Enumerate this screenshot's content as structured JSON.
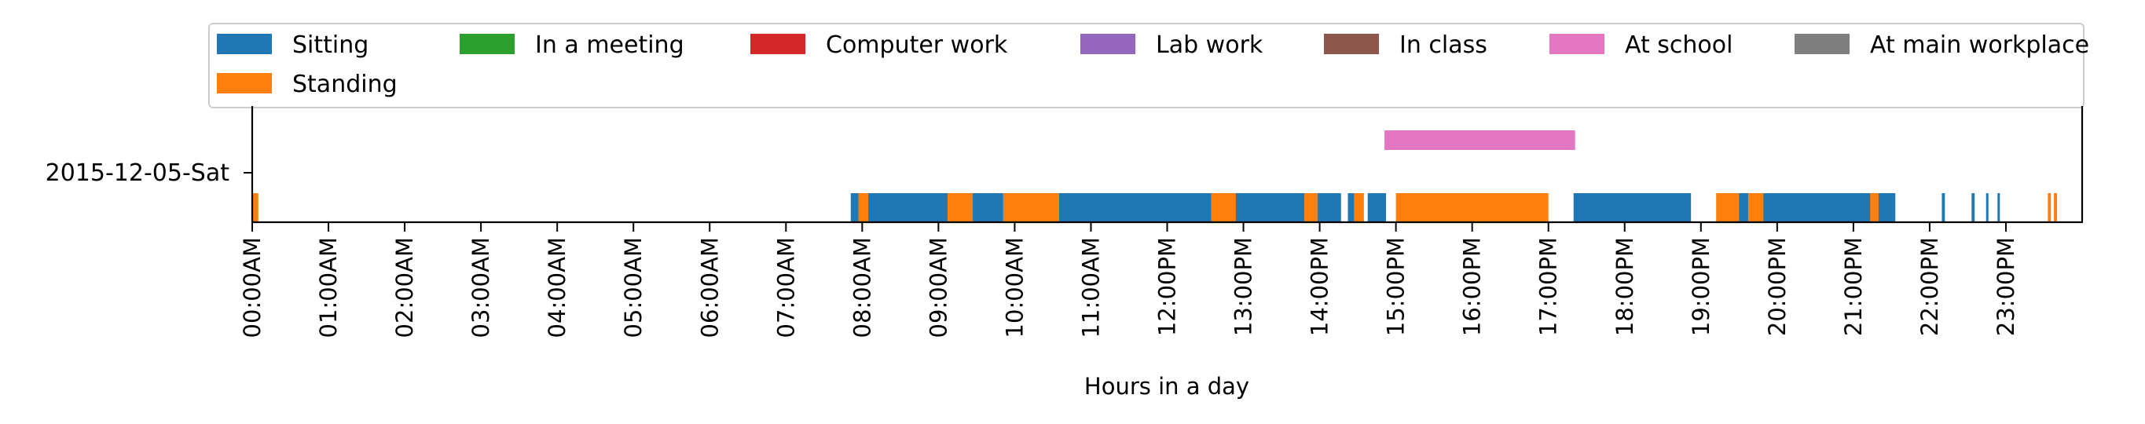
{
  "chart_data": {
    "type": "timeline",
    "title": "",
    "xlabel": "Hours in a day",
    "ylabel": "",
    "y_categories": [
      "2015-12-05-Sat"
    ],
    "x_range_hours": [
      0,
      24
    ],
    "x_ticks": [
      "00:00AM",
      "01:00AM",
      "02:00AM",
      "03:00AM",
      "04:00AM",
      "05:00AM",
      "06:00AM",
      "07:00AM",
      "08:00AM",
      "09:00AM",
      "10:00AM",
      "11:00AM",
      "12:00PM",
      "13:00PM",
      "14:00PM",
      "15:00PM",
      "16:00PM",
      "17:00PM",
      "18:00PM",
      "19:00PM",
      "20:00PM",
      "21:00PM",
      "22:00PM",
      "23:00PM"
    ],
    "grid": false,
    "legend_position": "top",
    "legend": [
      {
        "name": "Sitting",
        "color": "#1f77b4"
      },
      {
        "name": "In a meeting",
        "color": "#2ca02c"
      },
      {
        "name": "Computer work",
        "color": "#d62728"
      },
      {
        "name": "Lab work",
        "color": "#9467bd"
      },
      {
        "name": "In class",
        "color": "#8c564b"
      },
      {
        "name": "At school",
        "color": "#e377c2"
      },
      {
        "name": "At main workplace",
        "color": "#7f7f7f"
      },
      {
        "name": "Standing",
        "color": "#ff7f0e"
      }
    ],
    "series": [
      {
        "name": "Sitting",
        "color": "#1f77b4",
        "lane": "lower",
        "intervals": [
          [
            7.85,
            9.12
          ],
          [
            9.45,
            9.85
          ],
          [
            10.58,
            12.58
          ],
          [
            12.85,
            13.8
          ],
          [
            13.97,
            14.28
          ],
          [
            14.37,
            14.52
          ],
          [
            14.63,
            14.87
          ],
          [
            17.33,
            18.87
          ],
          [
            19.47,
            19.62
          ],
          [
            19.8,
            21.55
          ],
          [
            22.16,
            22.2
          ],
          [
            22.55,
            22.59
          ],
          [
            22.74,
            22.77
          ],
          [
            22.89,
            22.92
          ]
        ]
      },
      {
        "name": "Standing",
        "color": "#ff7f0e",
        "lane": "lower",
        "intervals": [
          [
            0.0,
            0.08
          ],
          [
            7.95,
            8.08
          ],
          [
            9.12,
            9.45
          ],
          [
            9.85,
            10.58
          ],
          [
            12.58,
            12.9
          ],
          [
            13.8,
            13.97
          ],
          [
            14.45,
            14.58
          ],
          [
            15.0,
            17.0
          ],
          [
            19.2,
            19.5
          ],
          [
            19.62,
            19.82
          ],
          [
            21.22,
            21.33
          ],
          [
            23.55,
            23.59
          ],
          [
            23.63,
            23.67
          ]
        ]
      },
      {
        "name": "At school",
        "color": "#e377c2",
        "lane": "upper",
        "intervals": [
          [
            14.85,
            17.35
          ]
        ]
      }
    ]
  }
}
